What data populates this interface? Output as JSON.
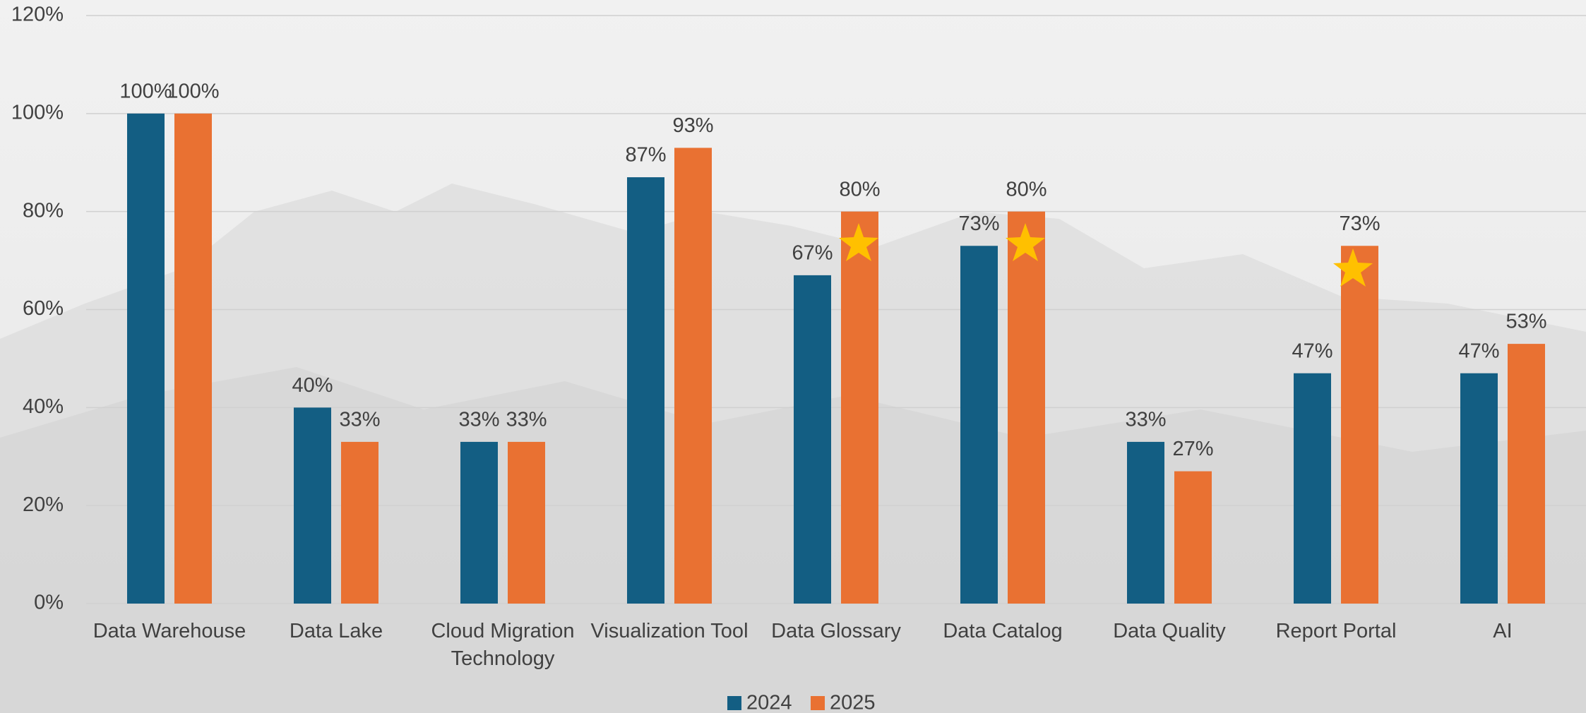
{
  "chart_data": {
    "type": "bar",
    "categories": [
      "Data Warehouse",
      "Data Lake",
      "Cloud Migration Technology",
      "Visualization Tool",
      "Data Glossary",
      "Data Catalog",
      "Data Quality",
      "Report Portal",
      "AI"
    ],
    "series": [
      {
        "name": "2024",
        "color": "#135e83",
        "values": [
          100,
          40,
          33,
          87,
          67,
          73,
          33,
          47,
          47
        ],
        "value_labels": [
          "100%",
          "40%",
          "33%",
          "87%",
          "67%",
          "73%",
          "33%",
          "47%",
          "47%"
        ]
      },
      {
        "name": "2025",
        "color": "#e97132",
        "values": [
          100,
          33,
          33,
          93,
          80,
          80,
          27,
          73,
          53
        ],
        "value_labels": [
          "100%",
          "33%",
          "33%",
          "93%",
          "80%",
          "80%",
          "27%",
          "73%",
          "53%"
        ]
      }
    ],
    "ylim": [
      0,
      120
    ],
    "yticks": [
      {
        "value": 0,
        "label": "0%"
      },
      {
        "value": 20,
        "label": "20%"
      },
      {
        "value": 40,
        "label": "40%"
      },
      {
        "value": 60,
        "label": "60%"
      },
      {
        "value": 80,
        "label": "80%"
      },
      {
        "value": 100,
        "label": "100%"
      },
      {
        "value": 120,
        "label": "120%"
      }
    ],
    "grid": true,
    "legend": "bottom"
  }
}
